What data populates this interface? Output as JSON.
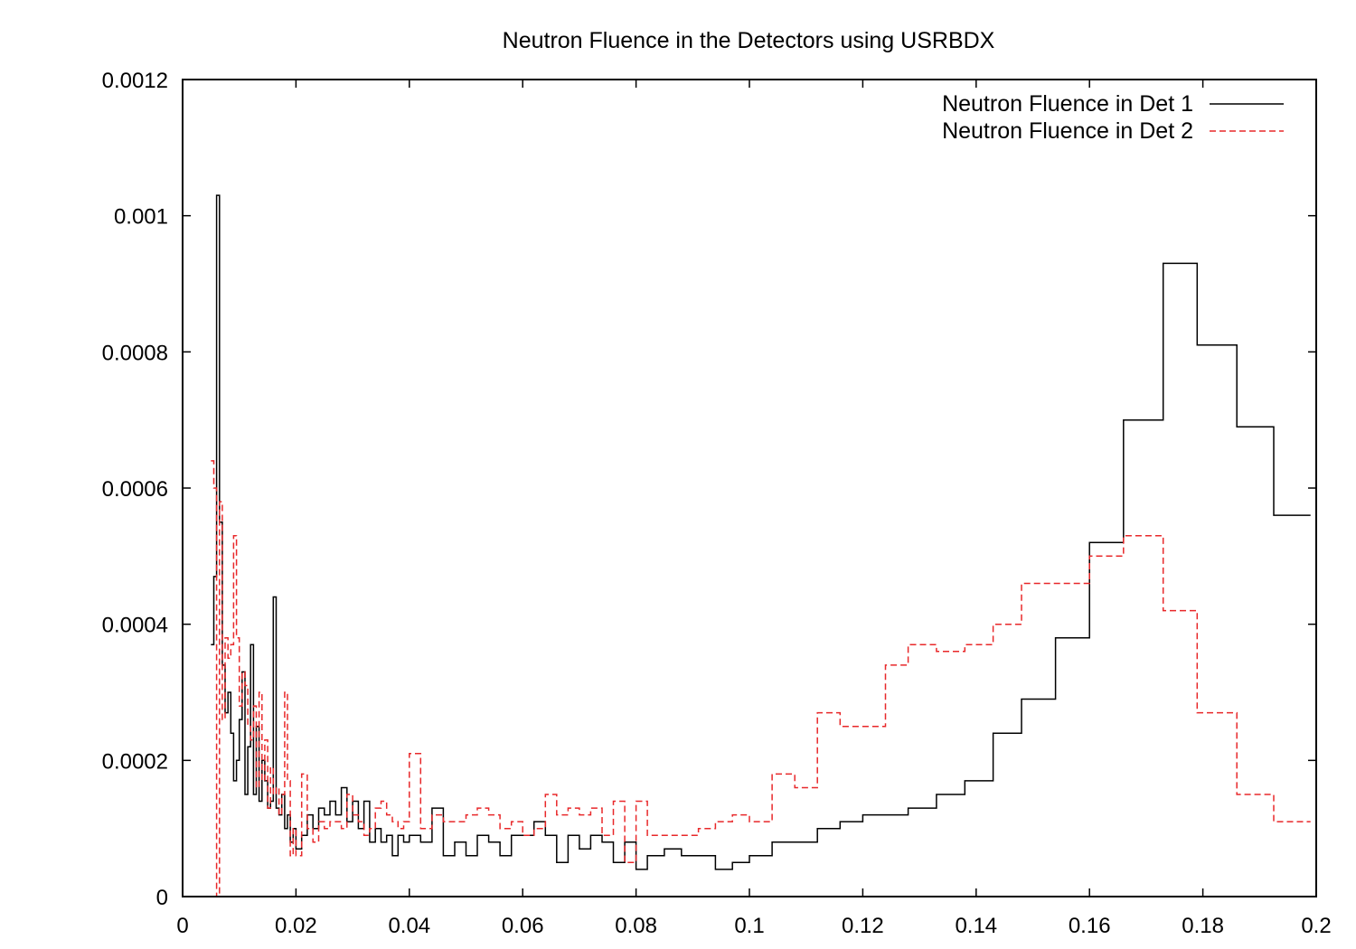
{
  "chart_data": {
    "type": "line",
    "step": true,
    "title": "Neutron Fluence in the Detectors using USRBDX",
    "xlabel": "",
    "ylabel": "",
    "xlim": [
      0,
      0.2
    ],
    "ylim": [
      0,
      0.0012
    ],
    "xticks": [
      0,
      0.02,
      0.04,
      0.06,
      0.08,
      0.1,
      0.12,
      0.14,
      0.16,
      0.18,
      0.2
    ],
    "xtick_labels": [
      "0",
      "0.02",
      "0.04",
      "0.06",
      "0.08",
      "0.1",
      "0.12",
      "0.14",
      "0.16",
      "0.18",
      "0.2"
    ],
    "yticks": [
      0,
      0.0002,
      0.0004,
      0.0006,
      0.0008,
      0.001,
      0.0012
    ],
    "ytick_labels": [
      "0",
      "0.0002",
      "0.0004",
      "0.0006",
      "0.0008",
      "0.001",
      "0.0012"
    ],
    "grid": false,
    "legend": "top-right",
    "series": [
      {
        "name": "Neutron Fluence in Det 1",
        "color": "#000000",
        "dash": "solid",
        "x": [
          0.005,
          0.0055,
          0.006,
          0.0065,
          0.007,
          0.0075,
          0.008,
          0.0085,
          0.009,
          0.0095,
          0.01,
          0.0105,
          0.011,
          0.0115,
          0.012,
          0.0125,
          0.013,
          0.0135,
          0.014,
          0.0145,
          0.015,
          0.0155,
          0.016,
          0.0165,
          0.017,
          0.0175,
          0.018,
          0.0185,
          0.019,
          0.0195,
          0.02,
          0.021,
          0.022,
          0.023,
          0.024,
          0.025,
          0.026,
          0.027,
          0.028,
          0.029,
          0.03,
          0.031,
          0.032,
          0.033,
          0.034,
          0.035,
          0.036,
          0.037,
          0.038,
          0.039,
          0.04,
          0.042,
          0.044,
          0.046,
          0.048,
          0.05,
          0.052,
          0.054,
          0.056,
          0.058,
          0.06,
          0.062,
          0.064,
          0.066,
          0.068,
          0.07,
          0.072,
          0.074,
          0.076,
          0.078,
          0.08,
          0.082,
          0.085,
          0.088,
          0.091,
          0.094,
          0.097,
          0.1,
          0.104,
          0.108,
          0.112,
          0.116,
          0.12,
          0.124,
          0.128,
          0.133,
          0.138,
          0.143,
          0.148,
          0.154,
          0.16,
          0.166,
          0.173,
          0.179,
          0.186,
          0.1925
        ],
        "values": [
          0.00037,
          0.00047,
          0.00103,
          0.00055,
          0.00034,
          0.00027,
          0.0003,
          0.00024,
          0.00017,
          0.0002,
          0.00026,
          0.00033,
          0.00015,
          0.00022,
          0.00037,
          0.00015,
          0.00025,
          0.00014,
          0.0002,
          0.00017,
          0.00013,
          0.00014,
          0.00044,
          0.00013,
          0.00012,
          0.00015,
          0.0001,
          0.00012,
          8e-05,
          0.0001,
          7e-05,
          9e-05,
          0.00012,
          0.0001,
          0.00013,
          0.00012,
          0.00014,
          0.00012,
          0.00016,
          0.00011,
          0.00014,
          0.0001,
          0.00014,
          8e-05,
          0.0001,
          8e-05,
          9e-05,
          6e-05,
          9e-05,
          8e-05,
          9e-05,
          8e-05,
          0.00013,
          6e-05,
          8e-05,
          6e-05,
          9e-05,
          8e-05,
          6e-05,
          9e-05,
          9e-05,
          0.00011,
          9e-05,
          5e-05,
          9e-05,
          7e-05,
          9e-05,
          8e-05,
          5e-05,
          8e-05,
          4e-05,
          6e-05,
          7e-05,
          6e-05,
          6e-05,
          4e-05,
          5e-05,
          6e-05,
          8e-05,
          8e-05,
          0.0001,
          0.00011,
          0.00012,
          0.00012,
          0.00013,
          0.00015,
          0.00017,
          0.00024,
          0.00029,
          0.00038,
          0.00052,
          0.0007,
          0.00093,
          0.00081,
          0.00069,
          0.00056
        ]
      },
      {
        "name": "Neutron Fluence in Det 2",
        "color": "#e8282a",
        "dash": "dashed",
        "x": [
          0.005,
          0.0055,
          0.006,
          0.0065,
          0.007,
          0.0075,
          0.008,
          0.0085,
          0.009,
          0.0095,
          0.01,
          0.0105,
          0.011,
          0.0115,
          0.012,
          0.0125,
          0.013,
          0.0135,
          0.014,
          0.0145,
          0.015,
          0.0155,
          0.016,
          0.0165,
          0.017,
          0.0175,
          0.018,
          0.0185,
          0.019,
          0.0195,
          0.02,
          0.021,
          0.022,
          0.023,
          0.024,
          0.025,
          0.026,
          0.027,
          0.028,
          0.029,
          0.03,
          0.031,
          0.032,
          0.033,
          0.034,
          0.035,
          0.036,
          0.037,
          0.038,
          0.039,
          0.04,
          0.042,
          0.044,
          0.046,
          0.048,
          0.05,
          0.052,
          0.054,
          0.056,
          0.058,
          0.06,
          0.062,
          0.064,
          0.066,
          0.068,
          0.07,
          0.072,
          0.074,
          0.076,
          0.078,
          0.08,
          0.082,
          0.085,
          0.088,
          0.091,
          0.094,
          0.097,
          0.1,
          0.104,
          0.108,
          0.112,
          0.116,
          0.12,
          0.124,
          0.128,
          0.133,
          0.138,
          0.143,
          0.148,
          0.154,
          0.16,
          0.166,
          0.173,
          0.179,
          0.186,
          0.1925
        ],
        "values": [
          0.00064,
          0.0006,
          0.0,
          0.00058,
          0.00026,
          0.00038,
          0.00035,
          0.00037,
          0.00053,
          0.00038,
          0.00028,
          0.00033,
          0.00031,
          0.00025,
          0.00023,
          0.00028,
          0.00016,
          0.0003,
          0.00017,
          0.00023,
          0.00013,
          0.00019,
          0.00015,
          0.00016,
          0.00012,
          0.00015,
          0.0003,
          0.00017,
          6e-05,
          0.0001,
          6e-05,
          0.00018,
          0.0001,
          8e-05,
          0.00011,
          0.0001,
          0.00011,
          0.00011,
          0.0001,
          0.00015,
          0.00012,
          0.00011,
          9e-05,
          0.0001,
          0.00013,
          0.00014,
          0.00012,
          0.00011,
          0.0001,
          0.00011,
          0.00021,
          0.0001,
          0.00012,
          0.00011,
          0.00011,
          0.00012,
          0.00013,
          0.00012,
          0.0001,
          0.00011,
          9e-05,
          0.0001,
          0.00015,
          0.00012,
          0.00013,
          0.00012,
          0.00013,
          9e-05,
          0.00014,
          5e-05,
          0.00014,
          9e-05,
          9e-05,
          9e-05,
          0.0001,
          0.00011,
          0.00012,
          0.00011,
          0.00018,
          0.00016,
          0.00027,
          0.00025,
          0.00025,
          0.00034,
          0.00037,
          0.00036,
          0.00037,
          0.0004,
          0.00046,
          0.00046,
          0.0005,
          0.00053,
          0.00042,
          0.00027,
          0.00015,
          0.00011
        ]
      }
    ]
  }
}
